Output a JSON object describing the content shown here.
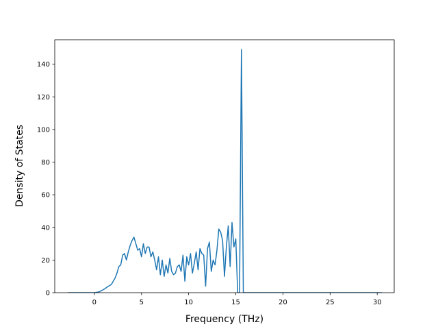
{
  "chart_data": {
    "type": "line",
    "title": "",
    "xlabel": "Frequency (THz)",
    "ylabel": "Density of States",
    "xlim": [
      -4.2,
      31.8
    ],
    "ylim": [
      0,
      155
    ],
    "xticks": [
      0,
      5,
      10,
      15,
      20,
      25,
      30
    ],
    "yticks": [
      0,
      20,
      40,
      60,
      80,
      100,
      120,
      140
    ],
    "grid": false,
    "legend": "none",
    "colors": {
      "line": "#1f77b4",
      "axes": "#000000"
    },
    "series": [
      {
        "x": [
          -2.8,
          -2.0,
          -1.0,
          0.0,
          0.5,
          1.0,
          1.5,
          1.8,
          2.0,
          2.2,
          2.4,
          2.6,
          2.8,
          3.0,
          3.2,
          3.4,
          3.6,
          3.8,
          4.0,
          4.2,
          4.4,
          4.6,
          4.8,
          5.0,
          5.2,
          5.4,
          5.6,
          5.8,
          6.0,
          6.2,
          6.4,
          6.6,
          6.8,
          7.0,
          7.2,
          7.4,
          7.6,
          7.8,
          8.0,
          8.2,
          8.4,
          8.6,
          8.8,
          9.0,
          9.2,
          9.4,
          9.6,
          9.8,
          10.0,
          10.2,
          10.4,
          10.6,
          10.8,
          11.0,
          11.2,
          11.4,
          11.6,
          11.8,
          12.0,
          12.2,
          12.4,
          12.6,
          12.8,
          13.0,
          13.2,
          13.4,
          13.6,
          13.8,
          14.0,
          14.2,
          14.4,
          14.6,
          14.8,
          15.0,
          15.2,
          15.4,
          15.6,
          15.8,
          16.0,
          17.6,
          17.8,
          18.0,
          18.2,
          19.0,
          25.0,
          30.5
        ],
        "y": [
          0,
          0,
          0,
          0,
          0.5,
          2,
          4,
          5,
          7,
          9,
          12,
          16,
          17,
          23,
          24,
          20,
          25,
          29,
          32,
          34,
          30,
          26,
          27,
          22,
          30,
          24,
          28,
          28,
          22,
          25,
          20,
          14,
          22,
          11,
          20,
          10,
          17,
          12,
          21,
          13,
          11,
          12,
          16,
          17,
          13,
          23,
          7,
          22,
          17,
          24,
          12,
          18,
          25,
          14,
          27,
          24,
          23,
          4,
          27,
          31,
          13,
          20,
          17,
          26,
          39,
          37,
          32,
          10,
          28,
          41,
          16,
          43,
          28,
          33,
          0,
          0,
          149,
          0,
          0,
          0,
          0,
          0,
          0,
          0,
          0,
          0
        ]
      }
    ]
  }
}
